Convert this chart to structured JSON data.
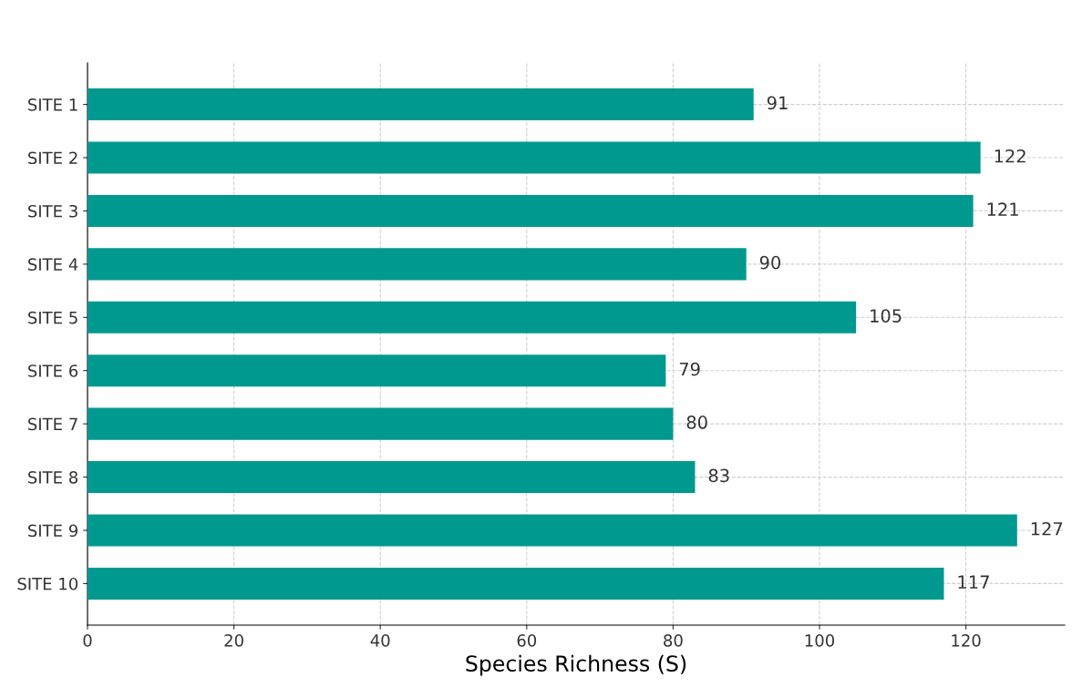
{
  "chart_data": {
    "type": "bar",
    "orientation": "horizontal",
    "xlabel": "Species Richness (S)",
    "categories": [
      "SITE 1",
      "SITE 2",
      "SITE 3",
      "SITE 4",
      "SITE 5",
      "SITE 6",
      "SITE 7",
      "SITE 8",
      "SITE 9",
      "SITE 10"
    ],
    "values": [
      91,
      122,
      121,
      90,
      105,
      79,
      80,
      83,
      127,
      117
    ],
    "color": "#009990",
    "xlim": [
      0,
      133.5
    ],
    "xticks": [
      0,
      20,
      40,
      60,
      80,
      100,
      120
    ],
    "grid": true,
    "data_labels": true
  }
}
